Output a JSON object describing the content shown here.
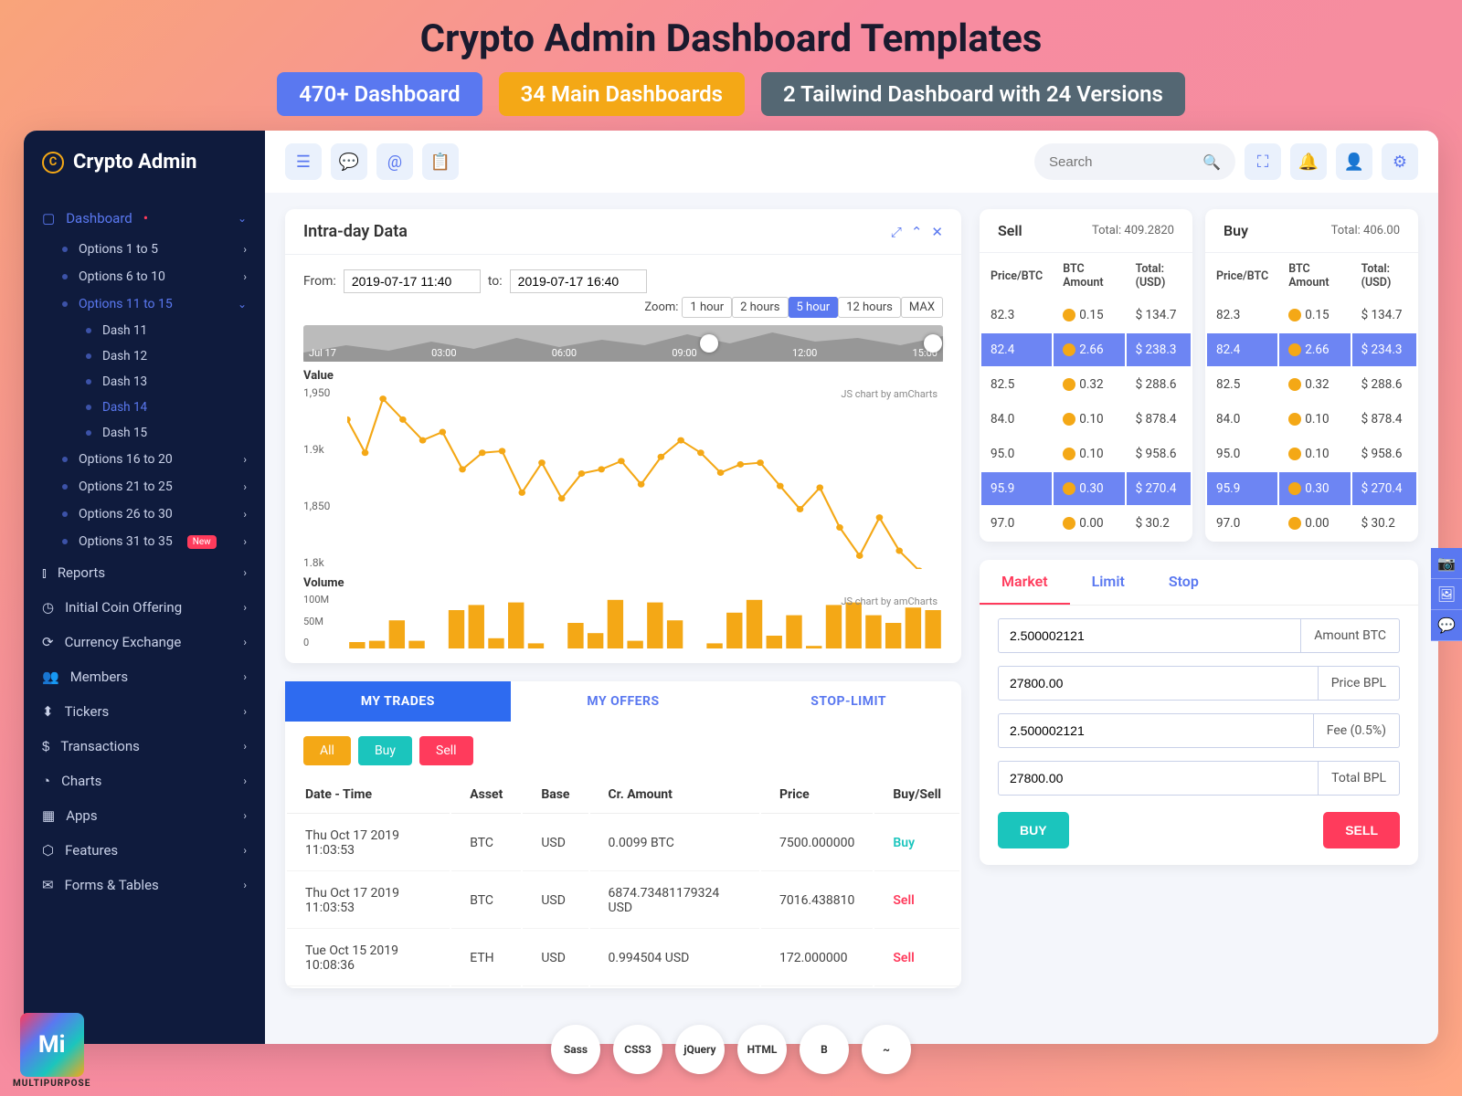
{
  "header": {
    "title": "Crypto Admin Dashboard Templates",
    "badges": [
      {
        "text": "470+ Dashboard",
        "color": "#5a78f0"
      },
      {
        "text": "34 Main Dashboards",
        "color": "#f4a816"
      },
      {
        "text": "2 Tailwind Dashboard with 24 Versions",
        "color": "#546773"
      }
    ]
  },
  "brand": "Crypto Admin",
  "sidebar": {
    "dashboard_label": "Dashboard",
    "options": [
      "Options 1 to 5",
      "Options 6 to 10",
      "Options 11 to 15",
      "Options 16 to 20",
      "Options 21 to 25",
      "Options 26 to 30",
      "Options 31 to 35"
    ],
    "dashes": [
      "Dash 11",
      "Dash 12",
      "Dash 13",
      "Dash 14",
      "Dash 15"
    ],
    "dash_selected": "Dash 14",
    "new_label": "New",
    "items": [
      "Reports",
      "Initial Coin Offering",
      "Currency Exchange",
      "Members",
      "Tickers",
      "Transactions",
      "Charts",
      "Apps",
      "Features",
      "Forms & Tables"
    ]
  },
  "topbar": {
    "search_placeholder": "Search"
  },
  "intraday": {
    "title": "Intra-day Data",
    "from_label": "From:",
    "to_label": "to:",
    "from": "2019-07-17 11:40",
    "to": "2019-07-17 16:40",
    "zoom_label": "Zoom:",
    "zoom_buttons": [
      "1 hour",
      "2 hours",
      "5 hour",
      "12 hours",
      "MAX"
    ],
    "zoom_active": "5 hour",
    "mini_labels": [
      "Jul 17",
      "03:00",
      "06:00",
      "09:00",
      "12:00",
      "15:00"
    ],
    "value_label": "Value",
    "volume_label": "Volume",
    "chart_note": "JS chart by amCharts",
    "value_chart": {
      "type": "line",
      "color": "#f4a816",
      "line_width": 2,
      "marker_radius": 3.5,
      "ylim": [
        1780,
        2000
      ],
      "y_ticks": [
        "1,950",
        "1.9k",
        "1,850",
        "1.8k"
      ],
      "points": [
        [
          0,
          1960
        ],
        [
          18,
          1920
        ],
        [
          36,
          1985
        ],
        [
          56,
          1960
        ],
        [
          76,
          1935
        ],
        [
          96,
          1945
        ],
        [
          116,
          1900
        ],
        [
          136,
          1920
        ],
        [
          156,
          1922
        ],
        [
          176,
          1872
        ],
        [
          196,
          1908
        ],
        [
          216,
          1865
        ],
        [
          236,
          1895
        ],
        [
          256,
          1900
        ],
        [
          276,
          1910
        ],
        [
          296,
          1882
        ],
        [
          316,
          1915
        ],
        [
          336,
          1935
        ],
        [
          356,
          1920
        ],
        [
          376,
          1896
        ],
        [
          396,
          1906
        ],
        [
          416,
          1908
        ],
        [
          436,
          1880
        ],
        [
          456,
          1852
        ],
        [
          476,
          1878
        ],
        [
          496,
          1830
        ],
        [
          516,
          1796
        ],
        [
          536,
          1842
        ],
        [
          556,
          1802
        ],
        [
          576,
          1778
        ]
      ]
    },
    "volume_chart": {
      "type": "bar",
      "color": "#f4a816",
      "y_ticks": [
        "100M",
        "50M",
        "0"
      ],
      "bars": [
        5,
        6,
        22,
        6,
        0,
        30,
        34,
        8,
        36,
        4,
        0,
        20,
        12,
        38,
        6,
        36,
        22,
        0,
        4,
        28,
        38,
        10,
        26,
        2,
        34,
        36,
        26,
        20,
        32,
        30
      ]
    }
  },
  "sell": {
    "title": "Sell",
    "total_label": "Total: 409.2820",
    "cols": [
      "Price/BTC",
      "BTC Amount",
      "Total: (USD)"
    ],
    "rows": [
      {
        "p": "82.3",
        "a": "0.15",
        "t": "$ 134.7",
        "hl": false
      },
      {
        "p": "82.4",
        "a": "2.66",
        "t": "$ 238.3",
        "hl": true
      },
      {
        "p": "82.5",
        "a": "0.32",
        "t": "$ 288.6",
        "hl": false
      },
      {
        "p": "84.0",
        "a": "0.10",
        "t": "$ 878.4",
        "hl": false
      },
      {
        "p": "95.0",
        "a": "0.10",
        "t": "$ 958.6",
        "hl": false
      },
      {
        "p": "95.9",
        "a": "0.30",
        "t": "$ 270.4",
        "hl": true
      },
      {
        "p": "97.0",
        "a": "0.00",
        "t": "$ 30.2",
        "hl": false
      }
    ]
  },
  "buy": {
    "title": "Buy",
    "total_label": "Total: 406.00",
    "cols": [
      "Price/BTC",
      "BTC Amount",
      "Total: (USD)"
    ],
    "rows": [
      {
        "p": "82.3",
        "a": "0.15",
        "t": "$ 134.7",
        "hl": false
      },
      {
        "p": "82.4",
        "a": "2.66",
        "t": "$ 234.3",
        "hl": true
      },
      {
        "p": "82.5",
        "a": "0.32",
        "t": "$ 288.6",
        "hl": false
      },
      {
        "p": "84.0",
        "a": "0.10",
        "t": "$ 878.4",
        "hl": false
      },
      {
        "p": "95.0",
        "a": "0.10",
        "t": "$ 958.6",
        "hl": false
      },
      {
        "p": "95.9",
        "a": "0.30",
        "t": "$ 270.4",
        "hl": true
      },
      {
        "p": "97.0",
        "a": "0.00",
        "t": "$ 30.2",
        "hl": false
      }
    ]
  },
  "trades": {
    "tabs": [
      "MY TRADES",
      "MY OFFERS",
      "STOP-LIMIT"
    ],
    "filters": {
      "all": "All",
      "buy": "Buy",
      "sell": "Sell"
    },
    "cols": [
      "Date - Time",
      "Asset",
      "Base",
      "Cr. Amount",
      "Price",
      "Buy/Sell"
    ],
    "rows": [
      {
        "dt": "Thu Oct 17 2019 11:03:53",
        "asset": "BTC",
        "base": "USD",
        "amt": "0.0099 BTC",
        "price": "7500.000000",
        "side": "Buy"
      },
      {
        "dt": "Thu Oct 17 2019 11:03:53",
        "asset": "BTC",
        "base": "USD",
        "amt": "6874.73481179324 USD",
        "price": "7016.438810",
        "side": "Sell"
      },
      {
        "dt": "Tue Oct 15 2019 10:08:36",
        "asset": "ETH",
        "base": "USD",
        "amt": "0.994504 USD",
        "price": "172.000000",
        "side": "Sell"
      }
    ]
  },
  "market": {
    "tabs": [
      "Market",
      "Limit",
      "Stop"
    ],
    "fields": [
      {
        "value": "2.500002121",
        "label": "Amount BTC"
      },
      {
        "value": "27800.00",
        "label": "Price BPL"
      },
      {
        "value": "2.500002121",
        "label": "Fee (0.5%)"
      },
      {
        "value": "27800.00",
        "label": "Total BPL"
      }
    ],
    "buy_label": "BUY",
    "sell_label": "SELL"
  },
  "tech": [
    "Sass",
    "CSS3",
    "jQuery",
    "HTML",
    "B",
    "~"
  ],
  "corner_logo": "MULTIPURPOSE"
}
